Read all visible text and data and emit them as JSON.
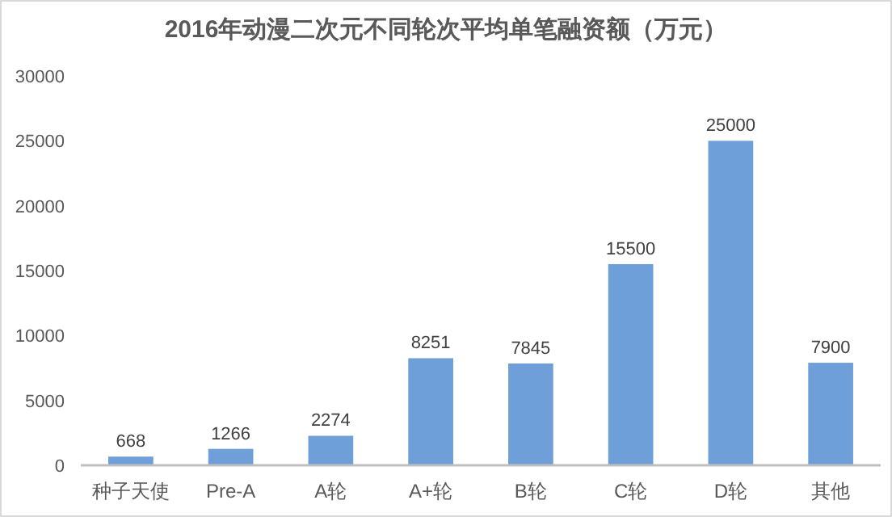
{
  "chart_data": {
    "type": "bar",
    "title": "2016年动漫二次元不同轮次平均单笔融资额（万元）",
    "categories": [
      "种子天使",
      "Pre-A",
      "A轮",
      "A+轮",
      "B轮",
      "C轮",
      "D轮",
      "其他"
    ],
    "values": [
      668,
      1266,
      2274,
      8251,
      7845,
      15500,
      25000,
      7900
    ],
    "color": "#6f9fd8",
    "ylim": [
      0,
      30000
    ],
    "yticks": [
      0,
      5000,
      10000,
      15000,
      20000,
      25000,
      30000
    ],
    "data_labels": true
  }
}
